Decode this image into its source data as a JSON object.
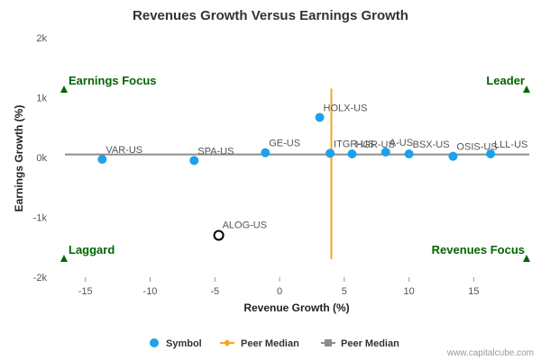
{
  "chart_data": {
    "type": "scatter",
    "title": "Revenues Growth Versus Earnings Growth",
    "xlabel": "Revenue Growth (%)",
    "ylabel": "Earnings Growth (%)",
    "xlim": [
      -17,
      19.5
    ],
    "ylim": [
      -2000,
      2000
    ],
    "x_ticks": [
      -15,
      -10,
      -5,
      0,
      5,
      10,
      15
    ],
    "y_ticks": [
      2000,
      1000,
      0,
      -1000,
      -2000
    ],
    "y_tick_labels": [
      "2k",
      "1k",
      "0k",
      "-1k",
      "-2k"
    ],
    "grid": false,
    "points": [
      {
        "label": "VAR-US",
        "x": -13.7,
        "y": -30
      },
      {
        "label": "SPA-US",
        "x": -6.6,
        "y": -50
      },
      {
        "label": "GE-US",
        "x": -1.1,
        "y": 80
      },
      {
        "label": "HOLX-US",
        "x": 3.1,
        "y": 670
      },
      {
        "label": "ITGR-US",
        "x": 3.9,
        "y": 70
      },
      {
        "label": "HGR-US",
        "x": 5.6,
        "y": 60
      },
      {
        "label": "A-US",
        "x": 8.2,
        "y": 90
      },
      {
        "label": "BSX-US",
        "x": 10.0,
        "y": 60
      },
      {
        "label": "OSIS-US",
        "x": 13.4,
        "y": 20
      },
      {
        "label": "LLL-US",
        "x": 16.3,
        "y": 60
      }
    ],
    "highlight_point": {
      "label": "ALOG-US",
      "x": -4.7,
      "y": -1300
    },
    "peer_median_x": 4.0,
    "peer_median_y": 50,
    "quadrants": {
      "top_left": "Earnings Focus",
      "top_right": "Leader",
      "bottom_left": "Laggard",
      "bottom_right": "Revenues Focus"
    },
    "legend": {
      "placement": "bottom",
      "items": [
        "Symbol",
        "Peer Median",
        "Peer Median"
      ]
    },
    "colors": {
      "symbol": "#1ea1e8",
      "peer_median_x": "#f5a623",
      "peer_median_y": "#8c8c8c",
      "quadrant": "#006600",
      "highlight": "#000000"
    }
  },
  "credit": "www.capitalcube.com"
}
